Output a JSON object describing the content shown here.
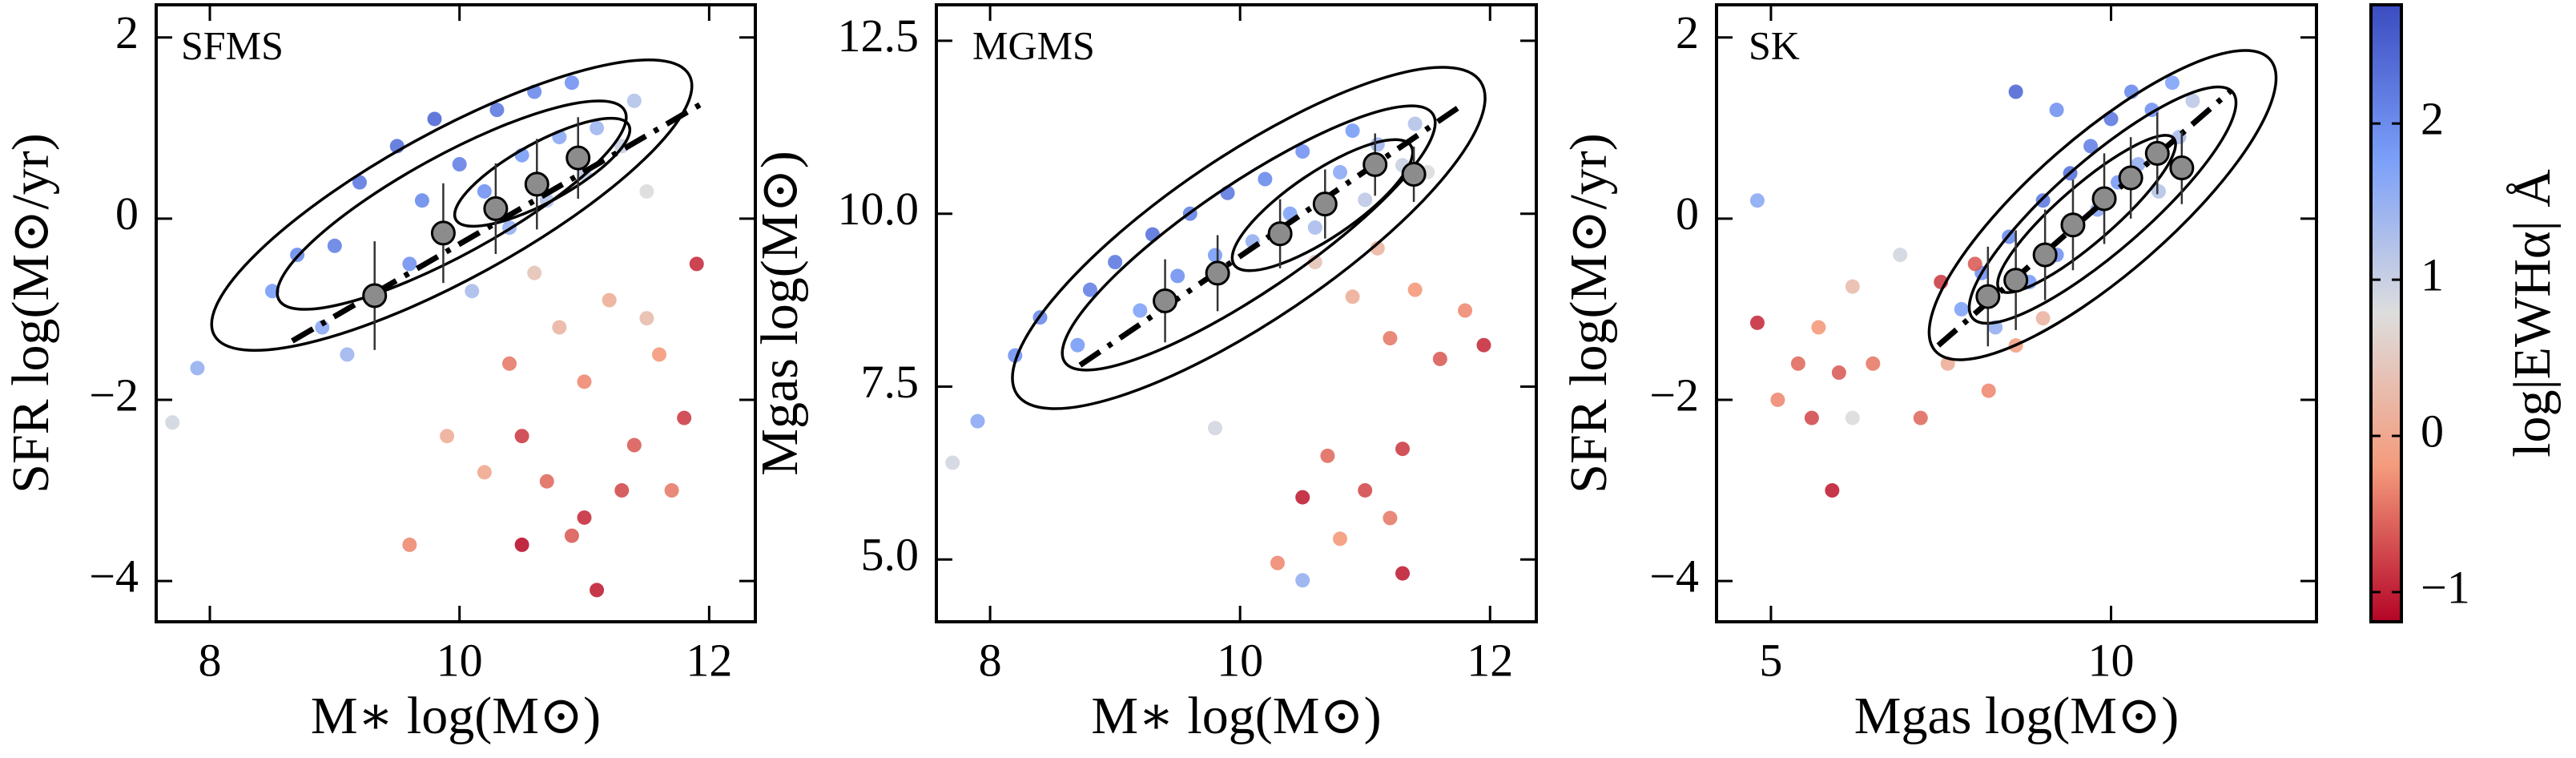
{
  "chart_data": [
    {
      "type": "scatter",
      "label": "SFMS",
      "xlabel": "M∗ log(M⊙)",
      "ylabel": "SFR log(M⊙/yr)",
      "xlim": [
        7.57,
        12.37
      ],
      "ylim": [
        -4.45,
        2.36
      ],
      "xticks": [
        8,
        10,
        12
      ],
      "yticks": [
        {
          "value": -4,
          "label": "−4"
        },
        {
          "value": -2,
          "label": "−2"
        },
        0,
        2
      ],
      "points": {
        "x": [
          8.5,
          8.7,
          8.9,
          9.0,
          9.2,
          9.3,
          9.5,
          9.6,
          9.7,
          9.8,
          9.9,
          10.0,
          10.1,
          10.2,
          10.3,
          10.4,
          10.5,
          10.6,
          10.7,
          10.8,
          10.9,
          11.0,
          11.1,
          11.3,
          11.4,
          7.9,
          9.1,
          11.5,
          7.7,
          10.6,
          10.8,
          11.0,
          11.2,
          11.4,
          11.6,
          11.9,
          10.5,
          10.7,
          11.0,
          11.3,
          10.2,
          11.1,
          9.6,
          10.9,
          11.5,
          11.7,
          9.9,
          10.4,
          11.8,
          10.5
        ],
        "y": [
          -0.8,
          -0.4,
          -1.2,
          -0.3,
          0.4,
          -0.9,
          0.8,
          -0.5,
          0.2,
          1.1,
          -0.2,
          0.6,
          -0.8,
          0.3,
          1.2,
          -0.1,
          0.7,
          1.4,
          0.2,
          0.9,
          1.5,
          0.5,
          1.0,
          0.8,
          1.3,
          -1.65,
          -1.5,
          0.3,
          -2.25,
          -0.6,
          -1.2,
          -1.8,
          -0.9,
          -2.5,
          -1.5,
          -0.5,
          -2.4,
          -2.9,
          -3.3,
          -3.0,
          -2.8,
          -4.1,
          -3.6,
          -3.5,
          -1.1,
          -3.0,
          -2.4,
          -1.6,
          -2.2,
          -3.6
        ],
        "c": [
          1.8,
          2.0,
          1.6,
          2.1,
          2.2,
          1.7,
          2.3,
          1.9,
          2.0,
          2.4,
          1.8,
          2.1,
          1.3,
          1.9,
          2.2,
          1.5,
          1.8,
          2.0,
          1.2,
          1.6,
          1.9,
          1.1,
          1.4,
          1.0,
          1.2,
          1.5,
          1.4,
          0.8,
          0.9,
          0.4,
          0.2,
          -0.3,
          0.1,
          -0.6,
          -0.2,
          -0.9,
          -0.8,
          -0.5,
          -0.9,
          -0.7,
          0.0,
          -1.0,
          -0.3,
          -0.6,
          0.3,
          -0.4,
          0.1,
          -0.4,
          -0.8,
          -1.1
        ]
      },
      "medians": {
        "x": [
          9.32,
          9.87,
          10.29,
          10.62,
          10.95
        ],
        "y": [
          -0.85,
          -0.16,
          0.11,
          0.38,
          0.67
        ],
        "yerr": [
          0.6,
          0.55,
          0.5,
          0.5,
          0.45
        ]
      },
      "fit": {
        "x": [
          8.66,
          11.93
        ],
        "y": [
          -1.35,
          1.26
        ]
      }
    },
    {
      "type": "scatter",
      "label": "MGMS",
      "xlabel": "M∗ log(M⊙)",
      "ylabel": "Mgas log(M⊙)",
      "xlim": [
        7.57,
        12.37
      ],
      "ylim": [
        4.1,
        13.02
      ],
      "xticks": [
        8,
        10,
        12
      ],
      "yticks": [
        {
          "value": 5,
          "label": "5.0"
        },
        7.5,
        {
          "value": 10,
          "label": "10.0"
        },
        12.5
      ],
      "points": {
        "x": [
          8.2,
          8.4,
          8.7,
          8.8,
          9.0,
          9.2,
          9.3,
          9.5,
          9.6,
          9.8,
          9.9,
          10.1,
          10.2,
          10.4,
          10.5,
          10.6,
          10.8,
          10.9,
          11.0,
          11.1,
          11.3,
          11.4,
          7.9,
          11.5,
          9.8,
          7.7,
          10.6,
          10.9,
          11.1,
          11.2,
          11.4,
          11.6,
          11.8,
          11.95,
          10.7,
          11.0,
          11.2,
          10.5,
          11.3,
          10.3,
          11.3,
          10.8,
          10.5
        ],
        "y": [
          7.95,
          8.5,
          8.1,
          8.9,
          9.3,
          8.6,
          9.7,
          9.1,
          10.0,
          9.4,
          10.3,
          9.6,
          10.5,
          10.0,
          10.9,
          9.8,
          10.6,
          11.2,
          10.2,
          11.0,
          10.7,
          11.3,
          7.0,
          10.6,
          6.9,
          6.4,
          9.3,
          8.8,
          9.5,
          8.2,
          8.9,
          7.9,
          8.6,
          8.1,
          6.5,
          6.0,
          5.6,
          5.9,
          4.8,
          4.95,
          6.6,
          5.3,
          4.7
        ],
        "c": [
          1.9,
          2.0,
          1.8,
          2.1,
          2.2,
          1.7,
          2.3,
          1.9,
          2.1,
          1.8,
          2.2,
          1.5,
          2.0,
          1.7,
          1.9,
          1.3,
          1.6,
          1.8,
          1.1,
          1.4,
          1.0,
          1.2,
          1.6,
          0.8,
          0.9,
          0.9,
          0.4,
          0.1,
          0.2,
          -0.4,
          -0.2,
          -0.6,
          -0.3,
          -0.9,
          -0.5,
          -0.7,
          -0.4,
          -1.0,
          -1.0,
          -0.3,
          -0.8,
          -0.2,
          1.5
        ]
      },
      "medians": {
        "x": [
          9.4,
          9.82,
          10.32,
          10.68,
          11.08,
          11.39
        ],
        "y": [
          8.74,
          9.14,
          9.71,
          10.14,
          10.71,
          10.57
        ],
        "yerr": [
          0.6,
          0.55,
          0.5,
          0.5,
          0.45,
          0.4
        ]
      },
      "fit": {
        "x": [
          8.72,
          11.76
        ],
        "y": [
          7.81,
          11.55
        ]
      }
    },
    {
      "type": "scatter",
      "label": "SK",
      "xlabel": "Mgas log(M⊙)",
      "ylabel": "SFR log(M⊙/yr)",
      "xlim": [
        4.2,
        13.02
      ],
      "ylim": [
        -4.45,
        2.36
      ],
      "xticks": [
        5,
        10
      ],
      "yticks": [
        {
          "value": -4,
          "label": "−4"
        },
        {
          "value": -2,
          "label": "−2"
        },
        0,
        2
      ],
      "points": {
        "x": [
          7.8,
          8.1,
          8.3,
          8.5,
          8.8,
          9.0,
          9.2,
          9.4,
          9.5,
          9.7,
          9.8,
          10.0,
          10.1,
          10.3,
          10.4,
          10.6,
          10.7,
          10.9,
          11.0,
          11.2,
          4.8,
          8.6,
          9.2,
          4.8,
          5.1,
          5.4,
          5.6,
          5.7,
          5.9,
          6.0,
          6.2,
          6.5,
          6.9,
          7.2,
          7.5,
          7.6,
          8.0,
          8.2,
          8.6,
          9.0,
          6.2
        ],
        "y": [
          -1.0,
          -0.6,
          -1.2,
          -0.2,
          -0.7,
          0.2,
          -0.4,
          0.5,
          -0.1,
          0.8,
          0.1,
          1.1,
          0.4,
          1.4,
          0.6,
          1.2,
          0.3,
          1.5,
          0.9,
          1.3,
          0.2,
          1.4,
          1.2,
          -1.15,
          -2.0,
          -1.6,
          -2.2,
          -1.2,
          -3.0,
          -1.7,
          -2.2,
          -1.6,
          -0.4,
          -2.2,
          -0.7,
          -1.6,
          -0.5,
          -1.9,
          -1.4,
          -1.1,
          -0.75
        ],
        "c": [
          1.7,
          1.9,
          1.5,
          2.0,
          1.8,
          2.2,
          1.9,
          2.3,
          1.8,
          2.1,
          1.6,
          2.2,
          1.8,
          2.0,
          1.5,
          1.9,
          1.2,
          1.7,
          1.3,
          1.1,
          1.6,
          2.4,
          1.9,
          -0.9,
          -0.3,
          -0.5,
          -0.7,
          -0.2,
          -1.0,
          -0.6,
          0.8,
          -0.4,
          0.9,
          -0.5,
          -0.8,
          0.1,
          -0.6,
          -0.3,
          -0.1,
          0.2,
          0.3
        ]
      },
      "medians": {
        "x": [
          8.19,
          8.6,
          9.03,
          9.44,
          9.9,
          10.29,
          10.68,
          11.04
        ],
        "y": [
          -0.86,
          -0.68,
          -0.4,
          -0.07,
          0.22,
          0.45,
          0.72,
          0.56
        ],
        "yerr": [
          0.55,
          0.55,
          0.5,
          0.5,
          0.5,
          0.45,
          0.45,
          0.4
        ]
      },
      "fit": {
        "x": [
          7.46,
          11.76
        ],
        "y": [
          -1.4,
          1.41
        ]
      }
    }
  ],
  "colorbar": {
    "label": "log|EWHα| Å",
    "clim": [
      -1.19,
      2.76
    ],
    "ticks": [
      {
        "value": -1,
        "label": "−1"
      },
      0,
      1,
      2
    ],
    "colormap": [
      "#b40426",
      "#f49a7b",
      "#dddddd",
      "#7b9ff9",
      "#3b4cc0"
    ]
  }
}
